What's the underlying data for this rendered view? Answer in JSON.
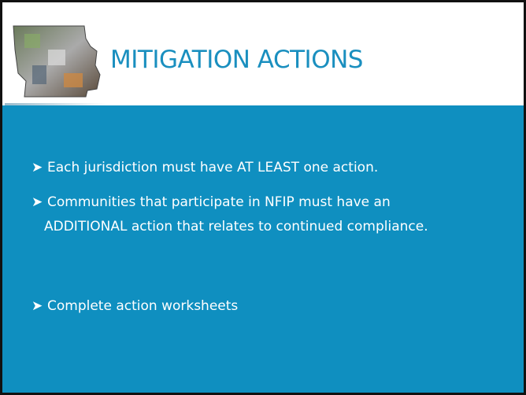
{
  "header": {
    "title": "MITIGATION ACTIONS"
  },
  "bullets": [
    {
      "lines": [
        "Each jurisdiction must have AT LEAST one action."
      ]
    },
    {
      "lines": [
        "Communities that participate in NFIP must have an",
        "ADDITIONAL action that relates to continued compliance."
      ]
    },
    {
      "lines": [
        "Complete action worksheets"
      ]
    }
  ]
}
